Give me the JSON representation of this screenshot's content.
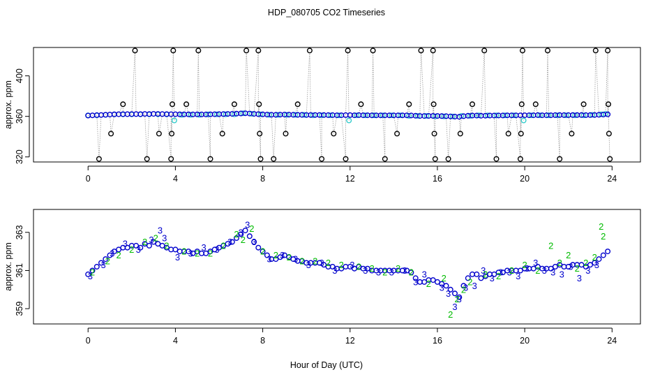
{
  "title": "HDP_080705  CO2 Timeseries",
  "xlabel": "Hour of Day (UTC)",
  "colors": {
    "axis": "#000000",
    "black": "#000000",
    "cyan": "#33cccc",
    "blue": "#0000cc",
    "green": "#00bb00",
    "connector": "#999999"
  },
  "chart_data": [
    {
      "type": "scatter",
      "ylabel": "approx. ppm",
      "xlim": [
        -2.5,
        25.3
      ],
      "ylim": [
        315,
        428
      ],
      "xticks": [
        0,
        4,
        8,
        12,
        16,
        20,
        24
      ],
      "yticks": [
        320,
        360,
        400
      ],
      "series": [
        {
          "name": "black-circles",
          "color": "black",
          "marker": "o",
          "x": [
            0.5,
            1.05,
            1.6,
            2.15,
            2.7,
            3.25,
            3.8,
            3.83,
            3.86,
            3.9,
            4.5,
            5.05,
            5.6,
            6.15,
            6.7,
            7.25,
            7.8,
            7.83,
            7.86,
            7.9,
            8.5,
            9.05,
            9.6,
            10.15,
            10.7,
            11.25,
            11.8,
            11.9,
            12.5,
            13.05,
            13.6,
            14.15,
            14.7,
            15.25,
            15.8,
            15.83,
            15.86,
            15.9,
            16.5,
            17.05,
            17.6,
            18.15,
            18.7,
            19.25,
            19.8,
            19.83,
            19.86,
            19.9,
            20.5,
            21.05,
            21.6,
            22.15,
            22.7,
            23.25,
            23.8,
            23.83,
            23.86,
            23.9
          ],
          "y": [
            318,
            343,
            372,
            425,
            318,
            343,
            318,
            343,
            372,
            425,
            372,
            425,
            318,
            343,
            372,
            425,
            425,
            372,
            343,
            318,
            318,
            343,
            372,
            425,
            318,
            343,
            318,
            425,
            372,
            425,
            318,
            343,
            372,
            425,
            425,
            372,
            343,
            318,
            318,
            343,
            372,
            425,
            318,
            343,
            318,
            343,
            372,
            425,
            372,
            425,
            318,
            343,
            372,
            425,
            425,
            372,
            343,
            318
          ]
        },
        {
          "name": "cyan-circles",
          "color": "cyan",
          "marker": "o",
          "x": [
            0.0,
            0.4,
            0.8,
            1.2,
            1.6,
            2.0,
            2.4,
            2.8,
            3.2,
            3.6,
            3.95,
            4.3,
            4.7,
            5.1,
            5.5,
            5.9,
            6.3,
            6.7,
            7.1,
            7.5,
            7.9,
            8.3,
            8.7,
            9.1,
            9.5,
            9.9,
            10.3,
            10.7,
            11.1,
            11.5,
            11.95,
            12.3,
            12.7,
            13.1,
            13.5,
            13.9,
            14.3,
            14.7,
            15.1,
            15.5,
            15.9,
            16.3,
            16.7,
            17.1,
            17.5,
            17.9,
            18.3,
            18.7,
            19.1,
            19.5,
            19.95,
            20.3,
            20.7,
            21.1,
            21.5,
            21.9,
            22.3,
            22.7,
            23.1,
            23.5,
            23.7
          ],
          "y": [
            361,
            361,
            361.5,
            362,
            362,
            362,
            362,
            362,
            362,
            362,
            356,
            361.5,
            361.5,
            361.5,
            362,
            362,
            362,
            362,
            363,
            362.5,
            362,
            361.5,
            361.5,
            361.5,
            361.5,
            361.5,
            361,
            361,
            361,
            361,
            356,
            361,
            361,
            361,
            361,
            361,
            361,
            360.5,
            360.5,
            360.5,
            360,
            360,
            360,
            360.5,
            360.5,
            361,
            361,
            361,
            361,
            361,
            356,
            361,
            361,
            361,
            361,
            361,
            361,
            361,
            361.5,
            362,
            362.5
          ]
        },
        {
          "name": "blue-circles",
          "color": "blue",
          "marker": "o",
          "x": [
            0.0,
            0.2,
            0.4,
            0.6,
            0.8,
            1.0,
            1.2,
            1.4,
            1.6,
            1.8,
            2.0,
            2.2,
            2.4,
            2.6,
            2.8,
            3.0,
            3.2,
            3.4,
            3.6,
            3.8,
            4.0,
            4.2,
            4.4,
            4.6,
            4.8,
            5.0,
            5.2,
            5.4,
            5.6,
            5.8,
            6.0,
            6.2,
            6.4,
            6.6,
            6.8,
            7.0,
            7.2,
            7.4,
            7.6,
            7.8,
            8.0,
            8.2,
            8.4,
            8.6,
            8.8,
            9.0,
            9.2,
            9.4,
            9.6,
            9.8,
            10.0,
            10.2,
            10.4,
            10.6,
            10.8,
            11.0,
            11.2,
            11.4,
            11.6,
            11.8,
            12.0,
            12.2,
            12.4,
            12.6,
            12.8,
            13.0,
            13.2,
            13.4,
            13.6,
            13.8,
            14.0,
            14.2,
            14.4,
            14.6,
            14.8,
            15.0,
            15.2,
            15.4,
            15.6,
            15.8,
            16.0,
            16.2,
            16.4,
            16.6,
            16.8,
            17.0,
            17.2,
            17.4,
            17.6,
            17.8,
            18.0,
            18.2,
            18.4,
            18.6,
            18.8,
            19.0,
            19.2,
            19.4,
            19.6,
            19.8,
            20.0,
            20.2,
            20.4,
            20.6,
            20.8,
            21.0,
            21.2,
            21.4,
            21.6,
            21.8,
            22.0,
            22.2,
            22.4,
            22.6,
            22.8,
            23.0,
            23.2,
            23.4,
            23.6,
            23.8
          ],
          "y": [
            360.8,
            361.0,
            361.2,
            361.4,
            361.6,
            361.8,
            362.0,
            362.1,
            362.2,
            362.2,
            362.3,
            362.3,
            362.2,
            362.4,
            362.3,
            362.5,
            362.4,
            362.3,
            362.2,
            362.1,
            362.1,
            362.0,
            362.0,
            362.0,
            361.9,
            362.0,
            361.9,
            361.9,
            362.0,
            362.1,
            362.2,
            362.3,
            362.4,
            362.5,
            362.7,
            362.9,
            363.1,
            362.8,
            362.5,
            362.2,
            362.0,
            361.8,
            361.6,
            361.6,
            361.7,
            361.8,
            361.7,
            361.6,
            361.5,
            361.5,
            361.4,
            361.4,
            361.4,
            361.4,
            361.3,
            361.2,
            361.2,
            361.1,
            361.1,
            361.2,
            361.2,
            361.1,
            361.2,
            361.1,
            361.1,
            361.0,
            361.0,
            361.0,
            361.0,
            361.0,
            361.0,
            361.0,
            361.0,
            361.0,
            360.9,
            360.6,
            360.4,
            360.4,
            360.5,
            360.5,
            360.4,
            360.3,
            360.2,
            360.0,
            359.8,
            359.6,
            360.2,
            360.6,
            360.8,
            360.8,
            360.6,
            360.7,
            360.8,
            360.8,
            360.9,
            360.9,
            361.0,
            361.0,
            361.0,
            361.0,
            361.1,
            361.1,
            361.1,
            361.2,
            361.1,
            361.1,
            361.1,
            361.2,
            361.3,
            361.2,
            361.2,
            361.3,
            361.3,
            361.3,
            361.2,
            361.3,
            361.4,
            361.6,
            361.8,
            362.0
          ]
        }
      ]
    },
    {
      "type": "scatter",
      "ylabel": "approx. ppm",
      "xlim": [
        -2.5,
        25.3
      ],
      "ylim": [
        358.2,
        364.2
      ],
      "xticks": [
        0,
        4,
        8,
        12,
        16,
        20,
        24
      ],
      "yticks": [
        359,
        361,
        363
      ],
      "series": [
        {
          "name": "blue-circles",
          "color": "blue",
          "marker": "o",
          "x": [
            0.0,
            0.2,
            0.4,
            0.6,
            0.8,
            1.0,
            1.2,
            1.4,
            1.6,
            1.8,
            2.0,
            2.2,
            2.4,
            2.6,
            2.8,
            3.0,
            3.2,
            3.4,
            3.6,
            3.8,
            4.0,
            4.2,
            4.4,
            4.6,
            4.8,
            5.0,
            5.2,
            5.4,
            5.6,
            5.8,
            6.0,
            6.2,
            6.4,
            6.6,
            6.8,
            7.0,
            7.2,
            7.4,
            7.6,
            7.8,
            8.0,
            8.2,
            8.4,
            8.6,
            8.8,
            9.0,
            9.2,
            9.4,
            9.6,
            9.8,
            10.0,
            10.2,
            10.4,
            10.6,
            10.8,
            11.0,
            11.2,
            11.4,
            11.6,
            11.8,
            12.0,
            12.2,
            12.4,
            12.6,
            12.8,
            13.0,
            13.2,
            13.4,
            13.6,
            13.8,
            14.0,
            14.2,
            14.4,
            14.6,
            14.8,
            15.0,
            15.2,
            15.4,
            15.6,
            15.8,
            16.0,
            16.2,
            16.4,
            16.6,
            16.8,
            17.0,
            17.2,
            17.4,
            17.6,
            17.8,
            18.0,
            18.2,
            18.4,
            18.6,
            18.8,
            19.0,
            19.2,
            19.4,
            19.6,
            19.8,
            20.0,
            20.2,
            20.4,
            20.6,
            20.8,
            21.0,
            21.2,
            21.4,
            21.6,
            21.8,
            22.0,
            22.2,
            22.4,
            22.6,
            22.8,
            23.0,
            23.2,
            23.4,
            23.6,
            23.8
          ],
          "y": [
            360.8,
            361.0,
            361.2,
            361.4,
            361.6,
            361.8,
            362.0,
            362.1,
            362.2,
            362.2,
            362.3,
            362.3,
            362.2,
            362.4,
            362.3,
            362.5,
            362.4,
            362.3,
            362.2,
            362.1,
            362.1,
            362.0,
            362.0,
            362.0,
            361.9,
            362.0,
            361.9,
            361.9,
            362.0,
            362.1,
            362.2,
            362.3,
            362.4,
            362.5,
            362.7,
            362.9,
            363.1,
            362.8,
            362.5,
            362.2,
            362.0,
            361.8,
            361.6,
            361.6,
            361.7,
            361.8,
            361.7,
            361.6,
            361.5,
            361.5,
            361.4,
            361.4,
            361.4,
            361.4,
            361.3,
            361.2,
            361.2,
            361.1,
            361.1,
            361.2,
            361.2,
            361.1,
            361.2,
            361.1,
            361.1,
            361.0,
            361.0,
            361.0,
            361.0,
            361.0,
            361.0,
            361.0,
            361.0,
            361.0,
            360.9,
            360.6,
            360.4,
            360.4,
            360.5,
            360.5,
            360.4,
            360.3,
            360.2,
            360.0,
            359.8,
            359.6,
            360.2,
            360.6,
            360.8,
            360.8,
            360.6,
            360.7,
            360.8,
            360.8,
            360.9,
            360.9,
            361.0,
            361.0,
            361.0,
            361.0,
            361.1,
            361.1,
            361.1,
            361.2,
            361.1,
            361.1,
            361.1,
            361.2,
            361.3,
            361.2,
            361.2,
            361.3,
            361.3,
            361.3,
            361.2,
            361.3,
            361.4,
            361.6,
            361.8,
            362.0
          ]
        },
        {
          "name": "blue-3-labels",
          "color": "blue",
          "marker": "3",
          "label": "3",
          "x": [
            0.1,
            0.7,
            1.1,
            1.7,
            2.3,
            2.9,
            3.3,
            3.5,
            4.1,
            4.7,
            5.3,
            5.9,
            6.5,
            7.0,
            7.3,
            7.6,
            8.3,
            8.9,
            9.5,
            10.1,
            10.7,
            11.3,
            12.1,
            12.7,
            13.3,
            13.9,
            14.5,
            15.0,
            15.4,
            16.2,
            16.5,
            16.8,
            17.0,
            17.3,
            17.7,
            18.1,
            18.5,
            18.9,
            19.3,
            19.7,
            20.1,
            20.5,
            20.9,
            21.3,
            21.7,
            22.1,
            22.5,
            22.9,
            23.3
          ],
          "y": [
            360.7,
            361.3,
            361.9,
            362.4,
            362.1,
            362.6,
            363.1,
            362.7,
            361.7,
            361.9,
            362.2,
            362.1,
            362.5,
            363.0,
            363.4,
            362.5,
            361.6,
            361.8,
            361.6,
            361.3,
            361.4,
            361.0,
            361.3,
            361.0,
            360.9,
            360.9,
            361.0,
            360.4,
            360.8,
            360.1,
            359.8,
            359.1,
            359.5,
            360.1,
            360.2,
            361.0,
            360.6,
            360.9,
            360.9,
            360.7,
            361.1,
            361.4,
            361.0,
            360.9,
            360.8,
            361.2,
            360.6,
            361.0,
            361.3
          ]
        },
        {
          "name": "green-2-labels",
          "color": "green",
          "marker": "2",
          "label": "2",
          "x": [
            0.2,
            0.9,
            1.4,
            2.0,
            2.6,
            3.1,
            3.6,
            4.4,
            5.0,
            5.6,
            6.2,
            6.8,
            7.1,
            7.5,
            8.0,
            8.6,
            9.2,
            9.8,
            10.4,
            11.0,
            11.6,
            12.4,
            13.0,
            13.6,
            14.2,
            14.8,
            15.6,
            16.3,
            16.6,
            16.9,
            17.2,
            17.5,
            18.2,
            18.8,
            19.4,
            20.0,
            20.6,
            21.2,
            21.6,
            22.0,
            22.4,
            22.8,
            23.2,
            23.5,
            23.6
          ],
          "y": [
            360.9,
            361.5,
            361.8,
            362.1,
            362.5,
            362.7,
            362.3,
            362.0,
            361.9,
            361.9,
            362.3,
            362.9,
            362.6,
            363.2,
            362.0,
            361.8,
            361.7,
            361.5,
            361.5,
            361.4,
            361.3,
            361.2,
            361.1,
            360.9,
            361.1,
            360.9,
            360.3,
            360.6,
            358.7,
            359.5,
            360.0,
            360.4,
            360.8,
            360.7,
            361.0,
            361.3,
            361.0,
            362.3,
            361.4,
            361.8,
            361.1,
            361.4,
            361.7,
            363.3,
            362.8
          ]
        }
      ]
    }
  ]
}
